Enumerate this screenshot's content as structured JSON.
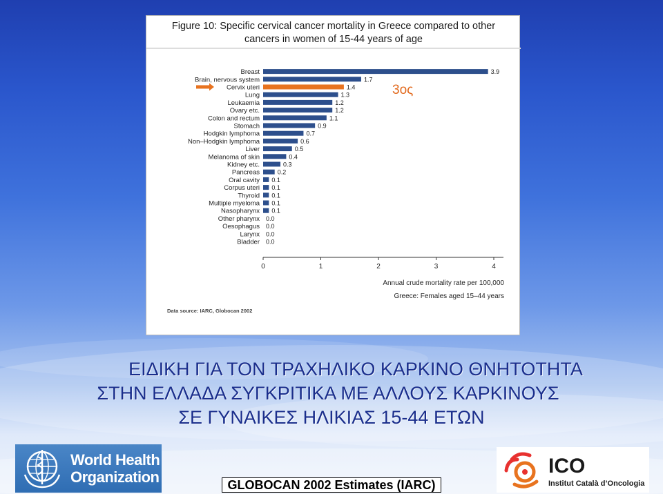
{
  "figure": {
    "title_line1": "Figure 10: Specific cervical cancer mortality in Greece compared to other",
    "title_line2": "cancers in women of 15-44 years of age",
    "annotation": "3ος"
  },
  "chart_data": {
    "type": "bar",
    "orientation": "horizontal",
    "categories": [
      "Breast",
      "Brain, nervous system",
      "Cervix uteri",
      "Lung",
      "Leukaemia",
      "Ovary etc.",
      "Colon and rectum",
      "Stomach",
      "Hodgkin lymphoma",
      "Non–Hodgkin lymphoma",
      "Liver",
      "Melanoma of skin",
      "Kidney etc.",
      "Pancreas",
      "Oral cavity",
      "Corpus uteri",
      "Thyroid",
      "Multiple myeloma",
      "Nasopharynx",
      "Other pharynx",
      "Oesophagus",
      "Larynx",
      "Bladder"
    ],
    "values": [
      3.9,
      1.7,
      1.4,
      1.3,
      1.2,
      1.2,
      1.1,
      0.9,
      0.7,
      0.6,
      0.5,
      0.4,
      0.3,
      0.2,
      0.1,
      0.1,
      0.1,
      0.1,
      0.1,
      0.0,
      0.0,
      0.0,
      0.0
    ],
    "value_labels": [
      "3.9",
      "1.7",
      "1.4",
      "1.3",
      "1.2",
      "1.2",
      "1.1",
      "0.9",
      "0.7",
      "0.6",
      "0.5",
      "0.4",
      "0.3",
      "0.2",
      "0.1",
      "0.1",
      "0.1",
      "0.1",
      "0.1",
      "0.0",
      "0.0",
      "0.0",
      "0.0"
    ],
    "highlight_category": "Cervix uteri",
    "highlight_index": 2,
    "xlim": [
      0,
      4
    ],
    "xticks": [
      "0",
      "1",
      "2",
      "3",
      "4"
    ],
    "xlabel": "Annual crude mortality rate per 100,000",
    "subtitle": "Greece: Females aged 15–44 years",
    "source": "Data source: IARC, Globocan 2002",
    "colors": {
      "bar": "#2d4f8c",
      "highlight": "#e8731f",
      "arrow": "#e8731f"
    }
  },
  "heading": {
    "line1": "ΕΙΔΙΚΗ ΓΙΑ ΤΟΝ ΤΡΑΧΗΛΙΚΟ ΚΑΡΚΙΝΟ ΘΝΗΤΟΤΗΤΑ",
    "line2": "ΣΤΗΝ ΕΛΛΑΔΑ ΣΥΓΚΡΙΤΙΚΑ ΜΕ ΑΛΛΟΥΣ ΚΑΡΚΙΝΟΥΣ",
    "line3": "ΣΕ ΓΥΝΑΙΚΕΣ ΗΛΙΚΙΑΣ 15-44 ΕΤΩΝ"
  },
  "footer": {
    "who_line1": "World Health",
    "who_line2": "Organization",
    "globocan": "GLOBOCAN 2002 Estimates (IARC)",
    "ico_name": "ICO",
    "ico_sub": "Institut Català d’Oncologia"
  }
}
